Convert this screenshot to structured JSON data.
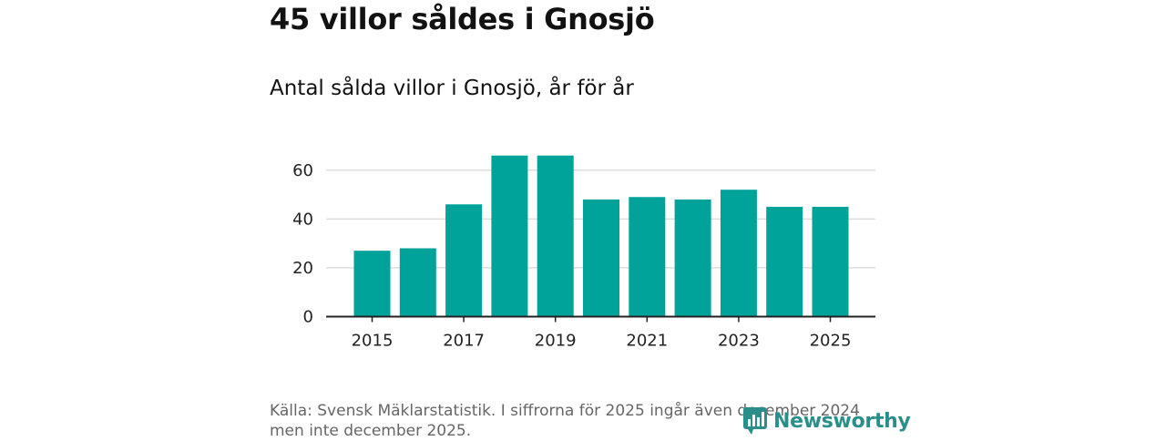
{
  "title": "45 villor såldes i Gnosjö",
  "subtitle": "Antal sålda villor i Gnosjö, år för år",
  "source": "Källa: Svensk Mäklarstatistik. I siffrorna för 2025 ingår även december 2024 men inte december 2025.",
  "brand": {
    "name": "Newsworthy",
    "icon": "newsworthy-logo-icon",
    "color": "#2a8f8a"
  },
  "chart_data": {
    "type": "bar",
    "title": "Antal sålda villor i Gnosjö, år för år",
    "xlabel": "",
    "ylabel": "",
    "categories": [
      "2015",
      "2016",
      "2017",
      "2018",
      "2019",
      "2020",
      "2021",
      "2022",
      "2023",
      "2024",
      "2025"
    ],
    "values": [
      27,
      28,
      46,
      66,
      66,
      48,
      49,
      48,
      52,
      45,
      45
    ],
    "x_tick_labels": [
      "2015",
      "2017",
      "2019",
      "2021",
      "2023",
      "2025"
    ],
    "y_ticks": [
      0,
      20,
      40,
      60
    ],
    "ylim": [
      0,
      70
    ],
    "grid": "horizontal",
    "bar_color": "#00a399",
    "grid_color": "#dddddd",
    "axis_color": "#222222"
  }
}
